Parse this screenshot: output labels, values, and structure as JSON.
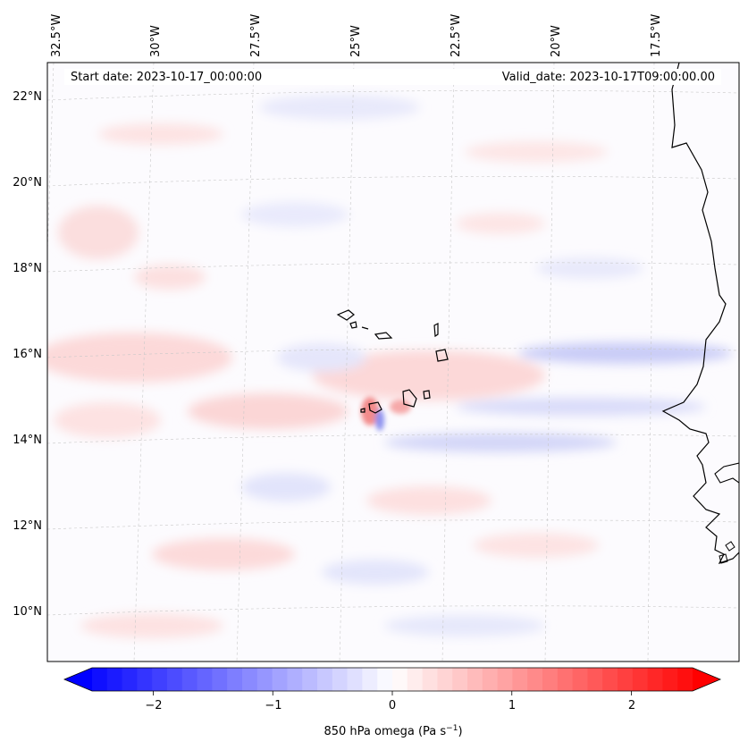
{
  "header": {
    "start_date": "Start date: 2023-10-17_00:00:00",
    "valid_date": "Valid_date: 2023-10-17T09:00:00.00"
  },
  "map": {
    "lon_labels": [
      "32.5°W",
      "30°W",
      "27.5°W",
      "25°W",
      "22.5°W",
      "20°W",
      "17.5°W"
    ],
    "lat_labels": [
      "22°N",
      "20°N",
      "18°N",
      "16°N",
      "14°N",
      "12°N",
      "10°N"
    ],
    "field": "850 hPa omega",
    "gridlines": true
  },
  "colorbar": {
    "label": "850 hPa omega (Pa s",
    "label_sup": "−1",
    "label_close": ")",
    "ticks": [
      "−2",
      "−1",
      "0",
      "1",
      "2"
    ],
    "range": [
      -2.6,
      2.6
    ],
    "cmap": "bwr",
    "colors": {
      "neg": "#0000ff",
      "zero": "#ffffff",
      "pos": "#ff0000"
    }
  }
}
